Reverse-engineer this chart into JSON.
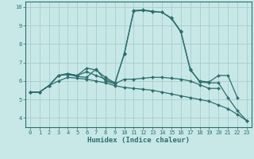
{
  "xlabel": "Humidex (Indice chaleur)",
  "xlim": [
    -0.5,
    23.5
  ],
  "ylim": [
    3.5,
    10.3
  ],
  "xticks": [
    0,
    1,
    2,
    3,
    4,
    5,
    6,
    7,
    8,
    9,
    10,
    11,
    12,
    13,
    14,
    15,
    16,
    17,
    18,
    19,
    20,
    21,
    22,
    23
  ],
  "yticks": [
    4,
    5,
    6,
    7,
    8,
    9,
    10
  ],
  "bg_color": "#c8e8e8",
  "grid_color": "#a8cccc",
  "line_color": "#2d6e6e",
  "lines": [
    [
      5.4,
      5.4,
      5.75,
      6.3,
      6.35,
      6.25,
      6.2,
      6.65,
      6.0,
      5.85,
      7.5,
      9.82,
      9.85,
      9.78,
      9.72,
      9.42,
      8.7,
      6.65,
      5.95,
      5.9,
      5.9,
      5.1,
      4.4,
      3.85
    ],
    [
      5.4,
      5.4,
      5.75,
      6.3,
      6.4,
      6.3,
      6.7,
      6.6,
      6.2,
      5.9,
      7.45,
      9.78,
      9.82,
      9.75,
      9.72,
      9.38,
      8.65,
      6.6,
      6.0,
      5.95,
      6.3,
      6.3,
      5.1,
      null
    ],
    [
      5.4,
      5.4,
      5.75,
      6.3,
      6.4,
      6.3,
      6.5,
      6.3,
      6.1,
      5.85,
      6.1,
      6.1,
      6.15,
      6.2,
      6.2,
      6.15,
      6.1,
      6.0,
      5.8,
      5.6,
      5.6,
      null,
      null,
      null
    ],
    [
      5.4,
      5.4,
      5.75,
      6.0,
      6.2,
      6.15,
      6.1,
      6.0,
      5.9,
      5.75,
      5.65,
      5.6,
      5.55,
      5.5,
      5.4,
      5.3,
      5.2,
      5.1,
      5.0,
      4.9,
      4.7,
      4.5,
      4.2,
      3.85
    ]
  ],
  "tick_fontsize": 5.0,
  "xlabel_fontsize": 6.5,
  "marker_size": 2.0,
  "linewidth": 0.9
}
